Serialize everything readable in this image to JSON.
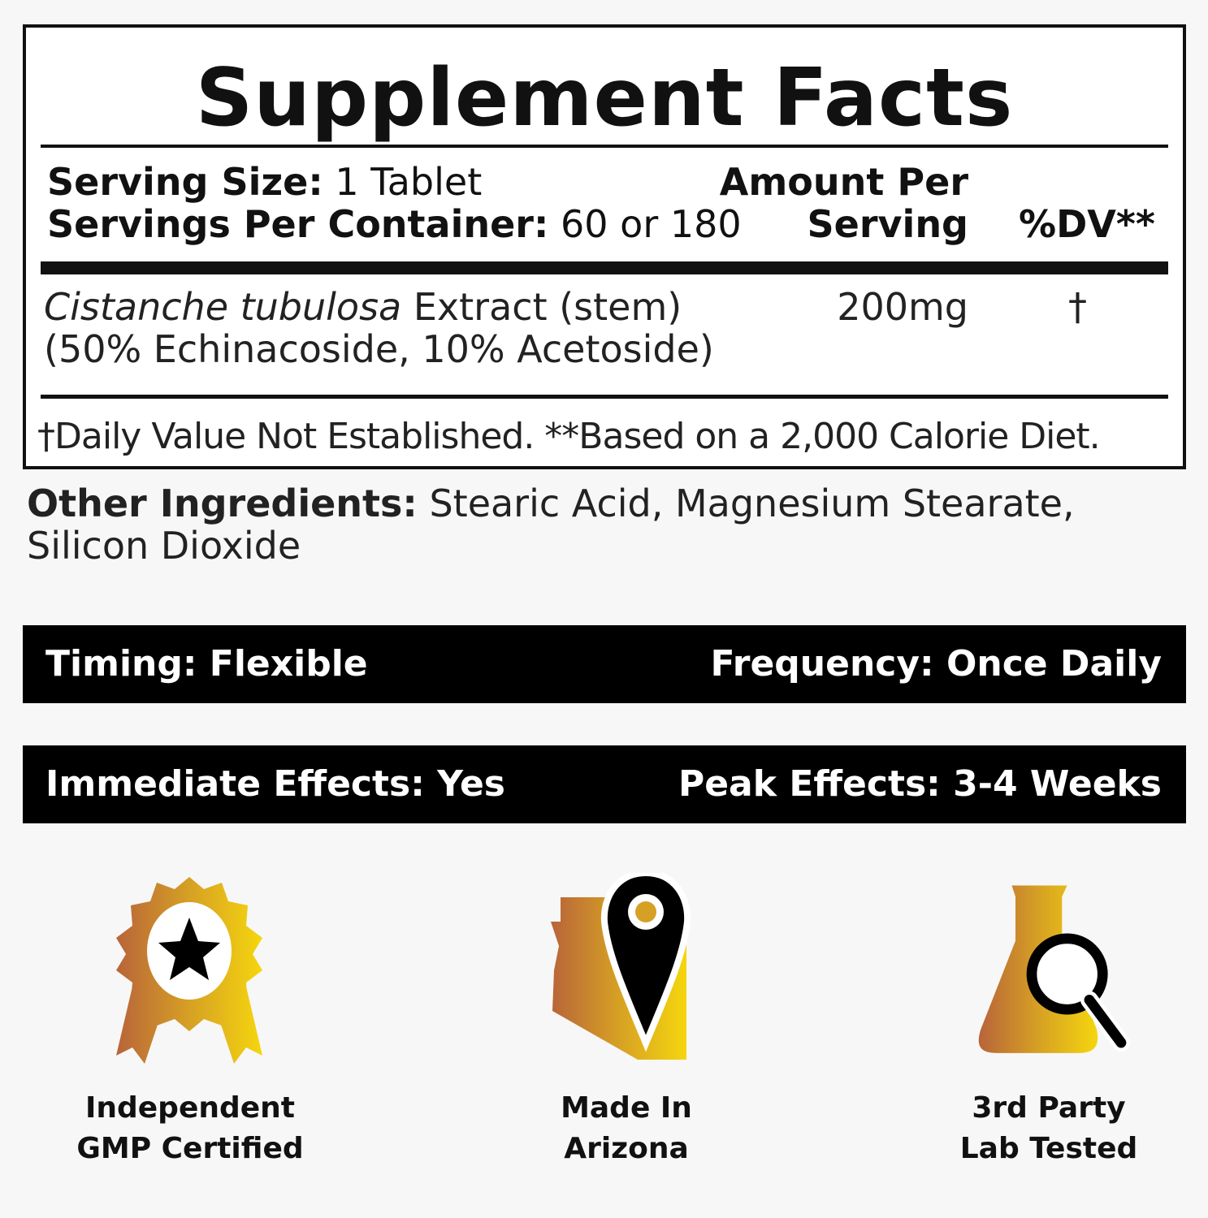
{
  "facts": {
    "title": "Supplement Facts",
    "serving_size_label": "Serving Size:",
    "serving_size": "1 Tablet",
    "servings_label": "Servings Per Container:",
    "servings": "60 or 180",
    "amount_header_1": "Amount Per",
    "amount_header_2": "Serving",
    "dv_header": "%DV**",
    "ingredient_name_italic": "Cistanche tubulosa",
    "ingredient_name_rest": " Extract (stem)",
    "ingredient_detail": "(50% Echinacoside, 10% Acetoside)",
    "ingredient_amount": "200mg",
    "ingredient_dv": "†",
    "footnote": "†Daily Value Not Established. **Based on a 2,000 Calorie Diet."
  },
  "other_ingredients": {
    "label": "Other Ingredients:",
    "value_line1": "Stearic Acid, Magnesium Stearate,",
    "value_line2": "Silicon Dioxide"
  },
  "bars": [
    {
      "left": "Timing: Flexible",
      "right": "Frequency: Once Daily"
    },
    {
      "left": "Immediate Effects: Yes",
      "right": "Peak Effects: 3-4 Weeks"
    }
  ],
  "badges": [
    {
      "icon": "award-ribbon-star-icon",
      "line1": "Independent",
      "line2": "GMP Certified"
    },
    {
      "icon": "arizona-map-pin-icon",
      "line1": "Made In",
      "line2": "Arizona"
    },
    {
      "icon": "flask-magnifier-icon",
      "line1": "3rd Party",
      "line2": "Lab Tested"
    }
  ],
  "colors": {
    "gradient_start": "#b8643a",
    "gradient_end": "#f5d60e",
    "background": "#f7f7f7"
  }
}
